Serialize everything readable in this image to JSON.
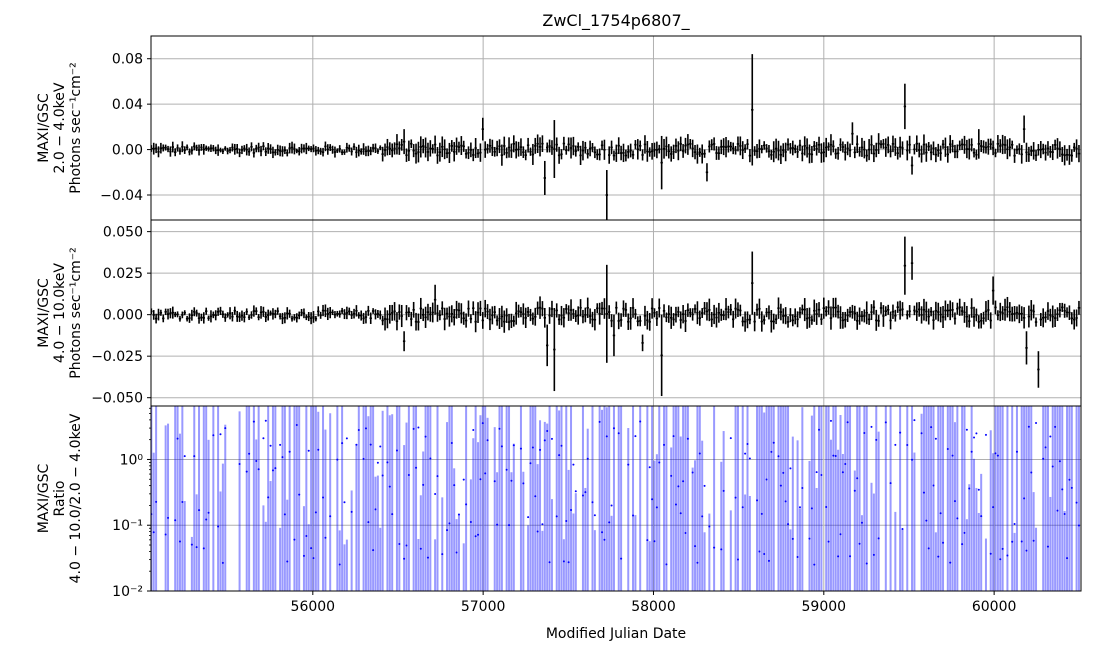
{
  "chart_data": {
    "type": "line",
    "title": "ZwCl_1754p6807_",
    "xlabel": "Modified Julian Date",
    "xlim": [
      55050,
      60510
    ],
    "xticks": [
      56000,
      57000,
      58000,
      59000,
      60000
    ],
    "grid": true,
    "panels": [
      {
        "id": "soft",
        "ylabel": [
          "MAXI/GSC",
          "2.0 − 4.0keV",
          "Photons sec⁻¹cm⁻²"
        ],
        "ylim": [
          -0.062,
          0.1
        ],
        "yscale": "linear",
        "yticks": [
          {
            "value": 0.08,
            "label": "0.08"
          },
          {
            "value": 0.04,
            "label": "0.04"
          },
          {
            "value": 0.0,
            "label": "0.00"
          },
          {
            "value": -0.04,
            "label": "−0.04"
          }
        ],
        "series": [
          {
            "color": "#000000",
            "bin_width_days": 14,
            "noise_amplitude": 0.003,
            "error_amplitude": 0.004,
            "spikes": [
              {
                "x": 56540,
                "lo": -0.004,
                "hi": 0.018
              },
              {
                "x": 56990,
                "lo": 0.008,
                "hi": 0.028
              },
              {
                "x": 57360,
                "lo": -0.04,
                "hi": -0.01
              },
              {
                "x": 57410,
                "lo": -0.025,
                "hi": 0.026
              },
              {
                "x": 57720,
                "lo": -0.062,
                "hi": -0.018
              },
              {
                "x": 58050,
                "lo": -0.035,
                "hi": 0.012
              },
              {
                "x": 58310,
                "lo": -0.028,
                "hi": -0.012
              },
              {
                "x": 58580,
                "lo": -0.014,
                "hi": 0.084
              },
              {
                "x": 59170,
                "lo": 0.004,
                "hi": 0.024
              },
              {
                "x": 59470,
                "lo": 0.018,
                "hi": 0.058
              },
              {
                "x": 59510,
                "lo": -0.022,
                "hi": -0.006
              },
              {
                "x": 59910,
                "lo": -0.008,
                "hi": 0.018
              },
              {
                "x": 60180,
                "lo": 0.006,
                "hi": 0.03
              }
            ]
          }
        ]
      },
      {
        "id": "hard",
        "ylabel": [
          "MAXI/GSC",
          "4.0 − 10.0keV",
          "Photons sec⁻¹cm⁻²"
        ],
        "ylim": [
          -0.055,
          0.057
        ],
        "yscale": "linear",
        "yticks": [
          {
            "value": 0.05,
            "label": "0.050"
          },
          {
            "value": 0.025,
            "label": "0.025"
          },
          {
            "value": 0.0,
            "label": "0.000"
          },
          {
            "value": -0.025,
            "label": "−0.025"
          },
          {
            "value": -0.05,
            "label": "−0.050"
          }
        ],
        "series": [
          {
            "color": "#000000",
            "bin_width_days": 14,
            "noise_amplitude": 0.0025,
            "error_amplitude": 0.003,
            "spikes": [
              {
                "x": 56540,
                "lo": -0.022,
                "hi": -0.01
              },
              {
                "x": 56720,
                "lo": 0.0,
                "hi": 0.018
              },
              {
                "x": 57370,
                "lo": -0.031,
                "hi": -0.006
              },
              {
                "x": 57410,
                "lo": -0.046,
                "hi": 0.004
              },
              {
                "x": 57720,
                "lo": -0.029,
                "hi": 0.03
              },
              {
                "x": 57760,
                "lo": -0.025,
                "hi": 0.0
              },
              {
                "x": 57940,
                "lo": -0.022,
                "hi": -0.012
              },
              {
                "x": 58050,
                "lo": -0.049,
                "hi": 0.0
              },
              {
                "x": 58580,
                "lo": 0.0,
                "hi": 0.038
              },
              {
                "x": 59470,
                "lo": 0.012,
                "hi": 0.047
              },
              {
                "x": 59510,
                "lo": 0.021,
                "hi": 0.041
              },
              {
                "x": 59990,
                "lo": 0.006,
                "hi": 0.023
              },
              {
                "x": 60190,
                "lo": -0.03,
                "hi": -0.01
              },
              {
                "x": 60260,
                "lo": -0.044,
                "hi": -0.022
              }
            ]
          }
        ]
      },
      {
        "id": "ratio",
        "ylabel": [
          "MAXI/GSC",
          "Ratio",
          "4.0 − 10.0/2.0 − 4.0keV"
        ],
        "ylim": [
          0.01,
          6.5
        ],
        "yscale": "log",
        "yticks": [
          {
            "value": 1,
            "label": "10⁰"
          },
          {
            "value": 0.1,
            "label": "10⁻¹"
          },
          {
            "value": 0.01,
            "label": "10⁻²"
          }
        ],
        "series": [
          {
            "color": "#0000ff",
            "bar_opacity": 0.4,
            "bin_width_days": 14,
            "hollow_fraction": 0.22
          }
        ]
      }
    ]
  }
}
